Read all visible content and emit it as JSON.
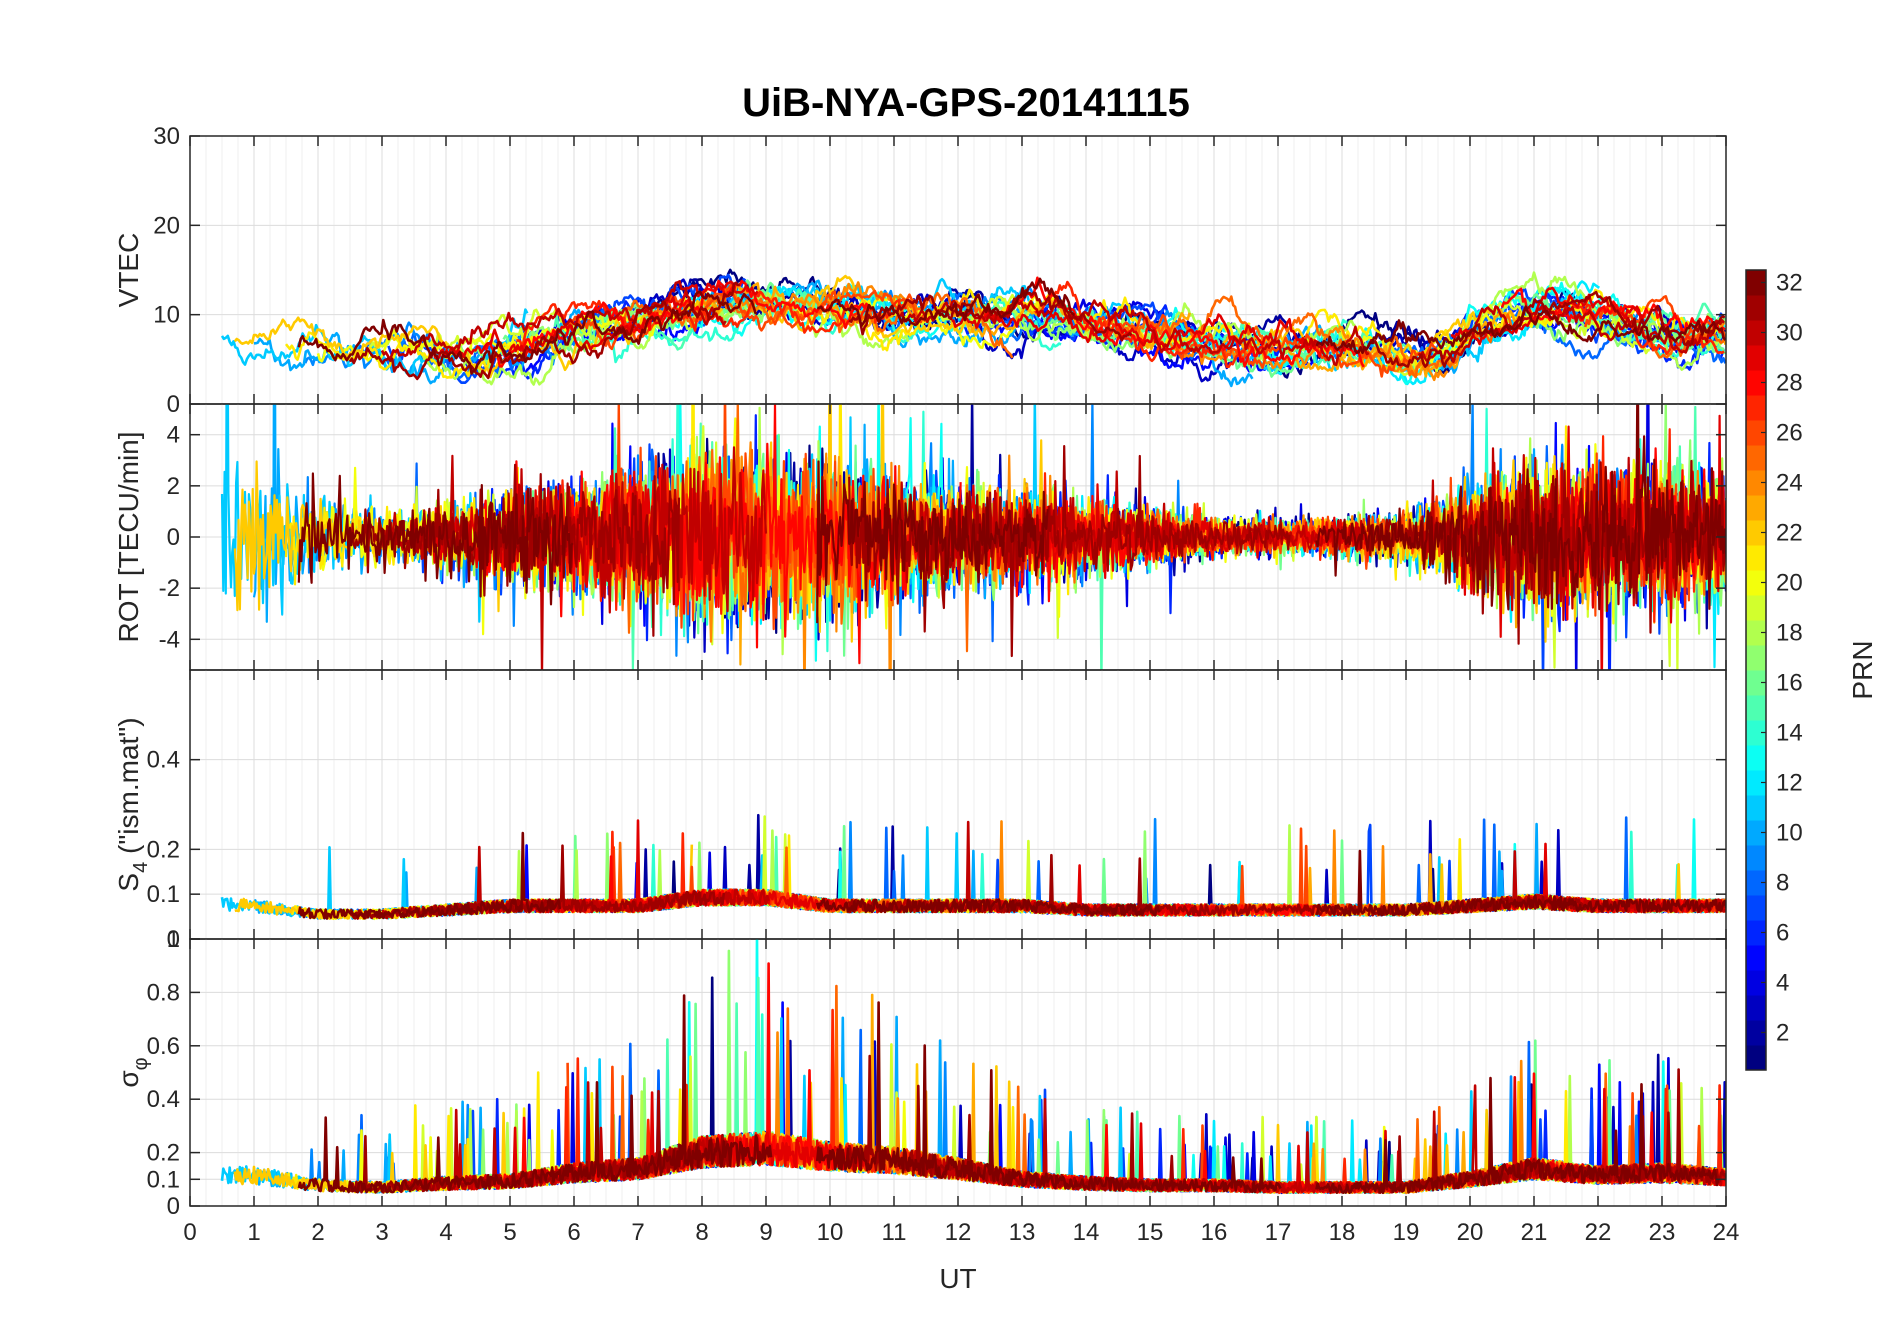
{
  "chart_data": {
    "type": "line",
    "title": "UiB-NYA-GPS-20141115",
    "xlabel": "UT",
    "xlim": [
      0,
      24
    ],
    "xticks": [
      "0",
      "1",
      "2",
      "3",
      "4",
      "5",
      "6",
      "7",
      "8",
      "9",
      "10",
      "11",
      "12",
      "13",
      "14",
      "15",
      "16",
      "17",
      "18",
      "19",
      "20",
      "21",
      "22",
      "23",
      "24"
    ],
    "grid": true,
    "series_note": "32 satellite series per panel, one per PRN, colored by PRN via jet colormap",
    "panels": [
      {
        "id": "vtec",
        "ylabel": "VTEC",
        "ylim": [
          0,
          30
        ],
        "yticks": [
          "0",
          "10",
          "20",
          "30"
        ],
        "activity": [
          [
            0,
            7
          ],
          [
            1,
            7
          ],
          [
            2,
            6
          ],
          [
            3,
            6
          ],
          [
            4,
            5
          ],
          [
            5,
            7
          ],
          [
            6,
            9
          ],
          [
            7,
            10
          ],
          [
            8,
            12
          ],
          [
            9,
            11
          ],
          [
            10,
            10
          ],
          [
            11,
            10
          ],
          [
            12,
            9
          ],
          [
            13,
            10
          ],
          [
            14,
            9
          ],
          [
            15,
            7
          ],
          [
            16,
            7
          ],
          [
            17,
            6
          ],
          [
            18,
            7
          ],
          [
            19,
            4
          ],
          [
            20,
            10
          ],
          [
            21,
            11
          ],
          [
            22,
            9
          ],
          [
            23,
            7
          ],
          [
            24,
            8
          ]
        ]
      },
      {
        "id": "rot",
        "ylabel": "ROT [TECU/min]",
        "ylim": [
          -5.2,
          5.2
        ],
        "yticks": [
          "-4",
          "-2",
          "0",
          "2",
          "4"
        ],
        "activity": [
          [
            0,
            2.8
          ],
          [
            1,
            3.2
          ],
          [
            2,
            1.2
          ],
          [
            3,
            0.8
          ],
          [
            4,
            1.2
          ],
          [
            5,
            1.6
          ],
          [
            6,
            1.8
          ],
          [
            7,
            2.2
          ],
          [
            8,
            2.8
          ],
          [
            9,
            2.8
          ],
          [
            10,
            2.6
          ],
          [
            11,
            2.0
          ],
          [
            12,
            1.6
          ],
          [
            13,
            1.4
          ],
          [
            14,
            1.2
          ],
          [
            15,
            0.9
          ],
          [
            16,
            0.6
          ],
          [
            17,
            0.5
          ],
          [
            18,
            0.6
          ],
          [
            19,
            0.8
          ],
          [
            20,
            1.6
          ],
          [
            21,
            2.6
          ],
          [
            22,
            2.4
          ],
          [
            23,
            2.4
          ],
          [
            24,
            2.0
          ]
        ]
      },
      {
        "id": "s4",
        "ylabel": "S4 (\"ism.mat\")",
        "ylabel_main": "S",
        "ylabel_sub": "4",
        "ylabel_rest": " (\"ism.mat\")",
        "ylim": [
          0,
          0.6
        ],
        "yticks": [
          "0",
          "0.1",
          "0.2",
          "0.4"
        ],
        "activity": [
          [
            0,
            0.09
          ],
          [
            1,
            0.08
          ],
          [
            2,
            0.06
          ],
          [
            3,
            0.06
          ],
          [
            4,
            0.07
          ],
          [
            5,
            0.08
          ],
          [
            6,
            0.08
          ],
          [
            7,
            0.08
          ],
          [
            8,
            0.1
          ],
          [
            9,
            0.1
          ],
          [
            10,
            0.08
          ],
          [
            11,
            0.08
          ],
          [
            12,
            0.08
          ],
          [
            13,
            0.08
          ],
          [
            14,
            0.07
          ],
          [
            15,
            0.07
          ],
          [
            16,
            0.07
          ],
          [
            17,
            0.07
          ],
          [
            18,
            0.07
          ],
          [
            19,
            0.07
          ],
          [
            20,
            0.08
          ],
          [
            21,
            0.09
          ],
          [
            22,
            0.08
          ],
          [
            23,
            0.08
          ],
          [
            24,
            0.08
          ]
        ]
      },
      {
        "id": "sigma_phi",
        "ylabel": "σφ",
        "ylabel_main": "σ",
        "ylabel_sub": "φ",
        "ylim": [
          0,
          1
        ],
        "yticks": [
          "0",
          "0.1",
          "0.2",
          "0.4",
          "0.6",
          "0.8",
          "1"
        ],
        "activity": [
          [
            0,
            0.14
          ],
          [
            1,
            0.15
          ],
          [
            2,
            0.1
          ],
          [
            3,
            0.09
          ],
          [
            4,
            0.11
          ],
          [
            5,
            0.12
          ],
          [
            6,
            0.16
          ],
          [
            7,
            0.18
          ],
          [
            8,
            0.26
          ],
          [
            9,
            0.28
          ],
          [
            10,
            0.24
          ],
          [
            11,
            0.22
          ],
          [
            12,
            0.18
          ],
          [
            13,
            0.13
          ],
          [
            14,
            0.11
          ],
          [
            15,
            0.1
          ],
          [
            16,
            0.1
          ],
          [
            17,
            0.09
          ],
          [
            18,
            0.09
          ],
          [
            19,
            0.09
          ],
          [
            20,
            0.13
          ],
          [
            21,
            0.18
          ],
          [
            22,
            0.15
          ],
          [
            23,
            0.16
          ],
          [
            24,
            0.14
          ]
        ]
      }
    ],
    "colorbar": {
      "label": "PRN",
      "range": [
        1,
        32
      ],
      "ticks": [
        "2",
        "4",
        "6",
        "8",
        "10",
        "12",
        "14",
        "16",
        "18",
        "20",
        "22",
        "24",
        "26",
        "28",
        "30",
        "32"
      ],
      "colormap": "jet"
    }
  }
}
